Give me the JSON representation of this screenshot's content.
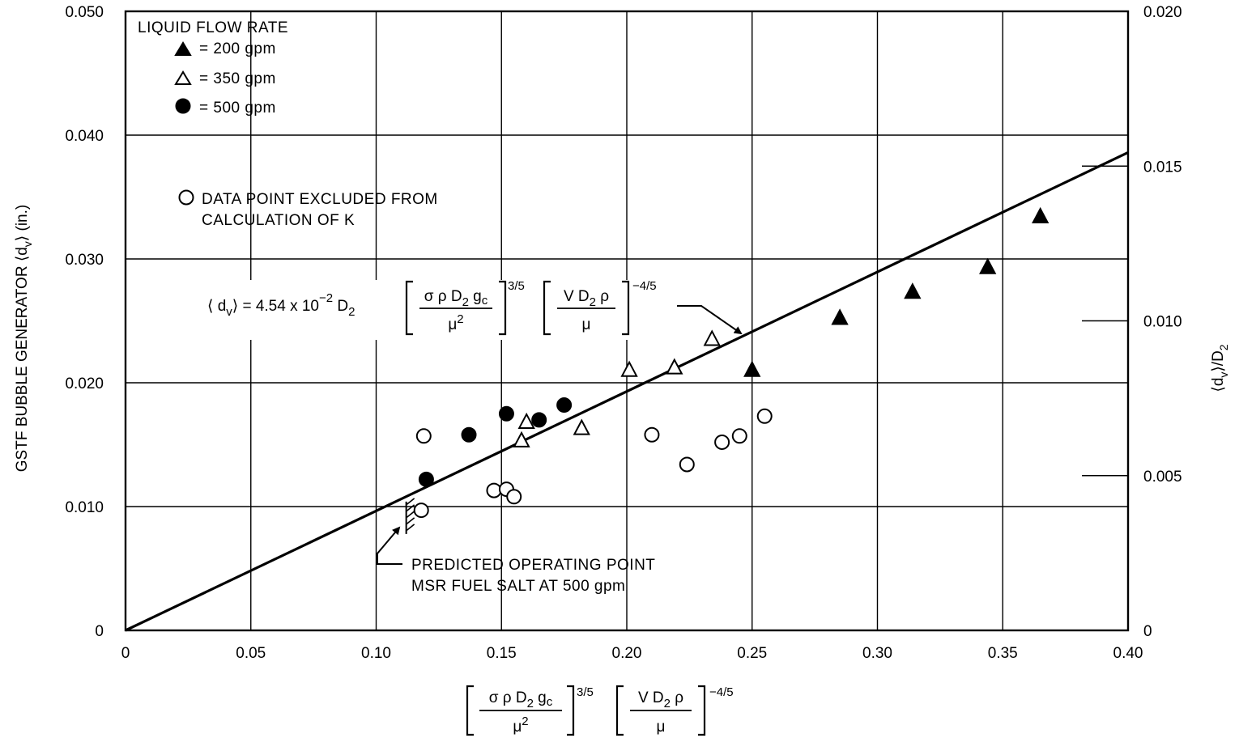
{
  "chart_data": {
    "type": "scatter",
    "title": "",
    "ylabel": "GSTF BUBBLE GENERATOR ⟨d",
    "ylabel_sub": "v",
    "ylabel_tail": "⟩ (in.)",
    "y2label": "⟨d",
    "y2label_sub": "v",
    "y2label_tail": "⟩/D",
    "y2label_sub2": "2",
    "xlabel": {
      "group1_numer": "σ ρ D",
      "group1_numer_sub": "2",
      "group1_numer_tail": " g",
      "group1_numer_tail_sub": "c",
      "group1_denom": "μ",
      "group1_denom_sup": "2",
      "group1_exp": "3/5",
      "group2_numer": "V D",
      "group2_numer_sub": "2",
      "group2_numer_tail": " ρ",
      "group2_denom": "μ",
      "group2_exp": "−4/5"
    },
    "xlim": [
      0,
      0.4
    ],
    "ylim": [
      0,
      0.05
    ],
    "y2lim": [
      0,
      0.02
    ],
    "x_ticks": [
      "0",
      "0.05",
      "0.10",
      "0.15",
      "0.20",
      "0.25",
      "0.30",
      "0.35",
      "0.40"
    ],
    "x_tick_values": [
      0,
      0.05,
      0.1,
      0.15,
      0.2,
      0.25,
      0.3,
      0.35,
      0.4
    ],
    "y_ticks": [
      "0",
      "0.010",
      "0.020",
      "0.030",
      "0.040",
      "0.050"
    ],
    "y_tick_values": [
      0,
      0.01,
      0.02,
      0.03,
      0.04,
      0.05
    ],
    "y2_ticks": [
      "0",
      "0.005",
      "0.010",
      "0.015",
      "0.020"
    ],
    "y2_tick_values": [
      0,
      0.005,
      0.01,
      0.015,
      0.02
    ],
    "grid": true,
    "legend_placement": "top-left",
    "legend": {
      "title": "LIQUID FLOW RATE",
      "entries": [
        {
          "marker": "filled-triangle",
          "label": "= 200 gpm"
        },
        {
          "marker": "open-triangle",
          "label": "= 350 gpm"
        },
        {
          "marker": "filled-circle",
          "label": "= 500 gpm"
        }
      ],
      "excluded_marker": "open-circle",
      "excluded_line1": "DATA POINT EXCLUDED FROM",
      "excluded_line2": "CALCULATION OF K"
    },
    "series": [
      {
        "name": "= 200 gpm",
        "marker": "filled-triangle",
        "x": [
          0.25,
          0.285,
          0.314,
          0.344,
          0.365
        ],
        "y": [
          0.021,
          0.0252,
          0.0273,
          0.0293,
          0.0334
        ]
      },
      {
        "name": "= 350 gpm",
        "marker": "open-triangle",
        "x": [
          0.16,
          0.158,
          0.182,
          0.201,
          0.219,
          0.234
        ],
        "y": [
          0.0168,
          0.0153,
          0.0163,
          0.021,
          0.0212,
          0.0235
        ]
      },
      {
        "name": "= 500 gpm",
        "marker": "filled-circle",
        "x": [
          0.12,
          0.137,
          0.152,
          0.165,
          0.175
        ],
        "y": [
          0.0122,
          0.0158,
          0.0175,
          0.017,
          0.0182
        ]
      },
      {
        "name": "DATA POINT EXCLUDED FROM CALCULATION OF K",
        "marker": "open-circle",
        "x": [
          0.119,
          0.118,
          0.147,
          0.152,
          0.155,
          0.21,
          0.224,
          0.238,
          0.245,
          0.255
        ],
        "y": [
          0.0157,
          0.0097,
          0.0113,
          0.0114,
          0.0108,
          0.0158,
          0.0134,
          0.0152,
          0.0157,
          0.0173
        ]
      }
    ],
    "fit_line": {
      "x": [
        0,
        0.4
      ],
      "y": [
        0,
        0.0386
      ]
    },
    "equation": {
      "lhs": "⟨ d",
      "lhs_sub": "v",
      "lhs_tail": "⟩ = 4.54 x 10",
      "lhs_exp": "−2",
      "lhs_tail2": " D",
      "lhs_tail2_sub": "2"
    },
    "annotation": {
      "line1": "PREDICTED OPERATING POINT",
      "line2": "MSR FUEL SALT AT 500 gpm",
      "point": {
        "x": 0.112,
        "y": 0.0104
      }
    }
  }
}
